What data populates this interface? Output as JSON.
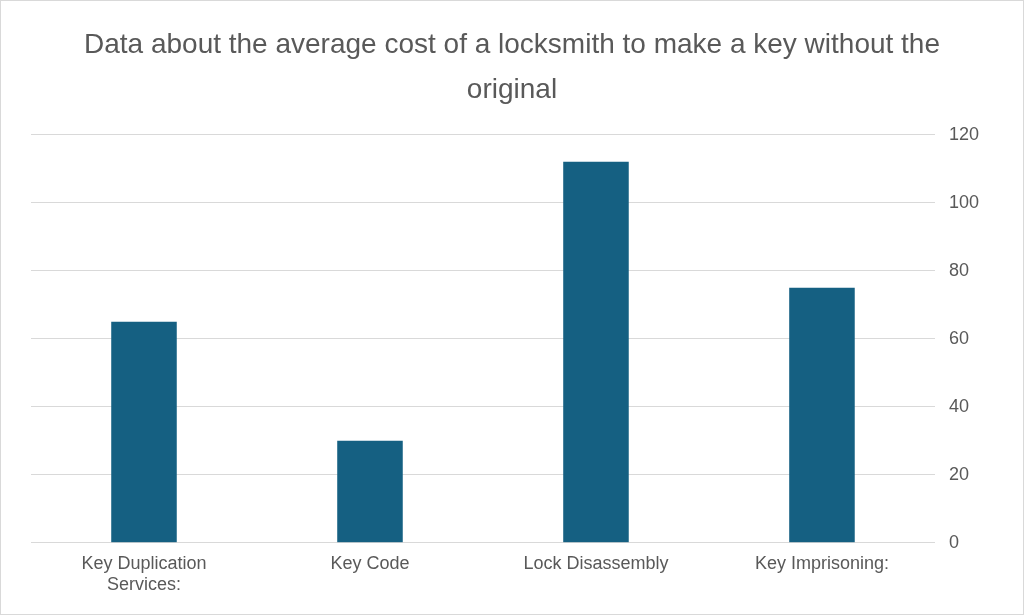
{
  "chart_data": {
    "type": "bar",
    "title": "Data about the average cost of a locksmith to make a key without the original",
    "categories": [
      "Key Duplication Services:",
      "Key Code",
      "Lock Disassembly",
      "Key Imprisoning:"
    ],
    "values": [
      65,
      30,
      112,
      75
    ],
    "color": "#156082",
    "ylim": [
      0,
      120
    ],
    "yticks": [
      0,
      20,
      40,
      60,
      80,
      100,
      120
    ],
    "grid": true
  }
}
